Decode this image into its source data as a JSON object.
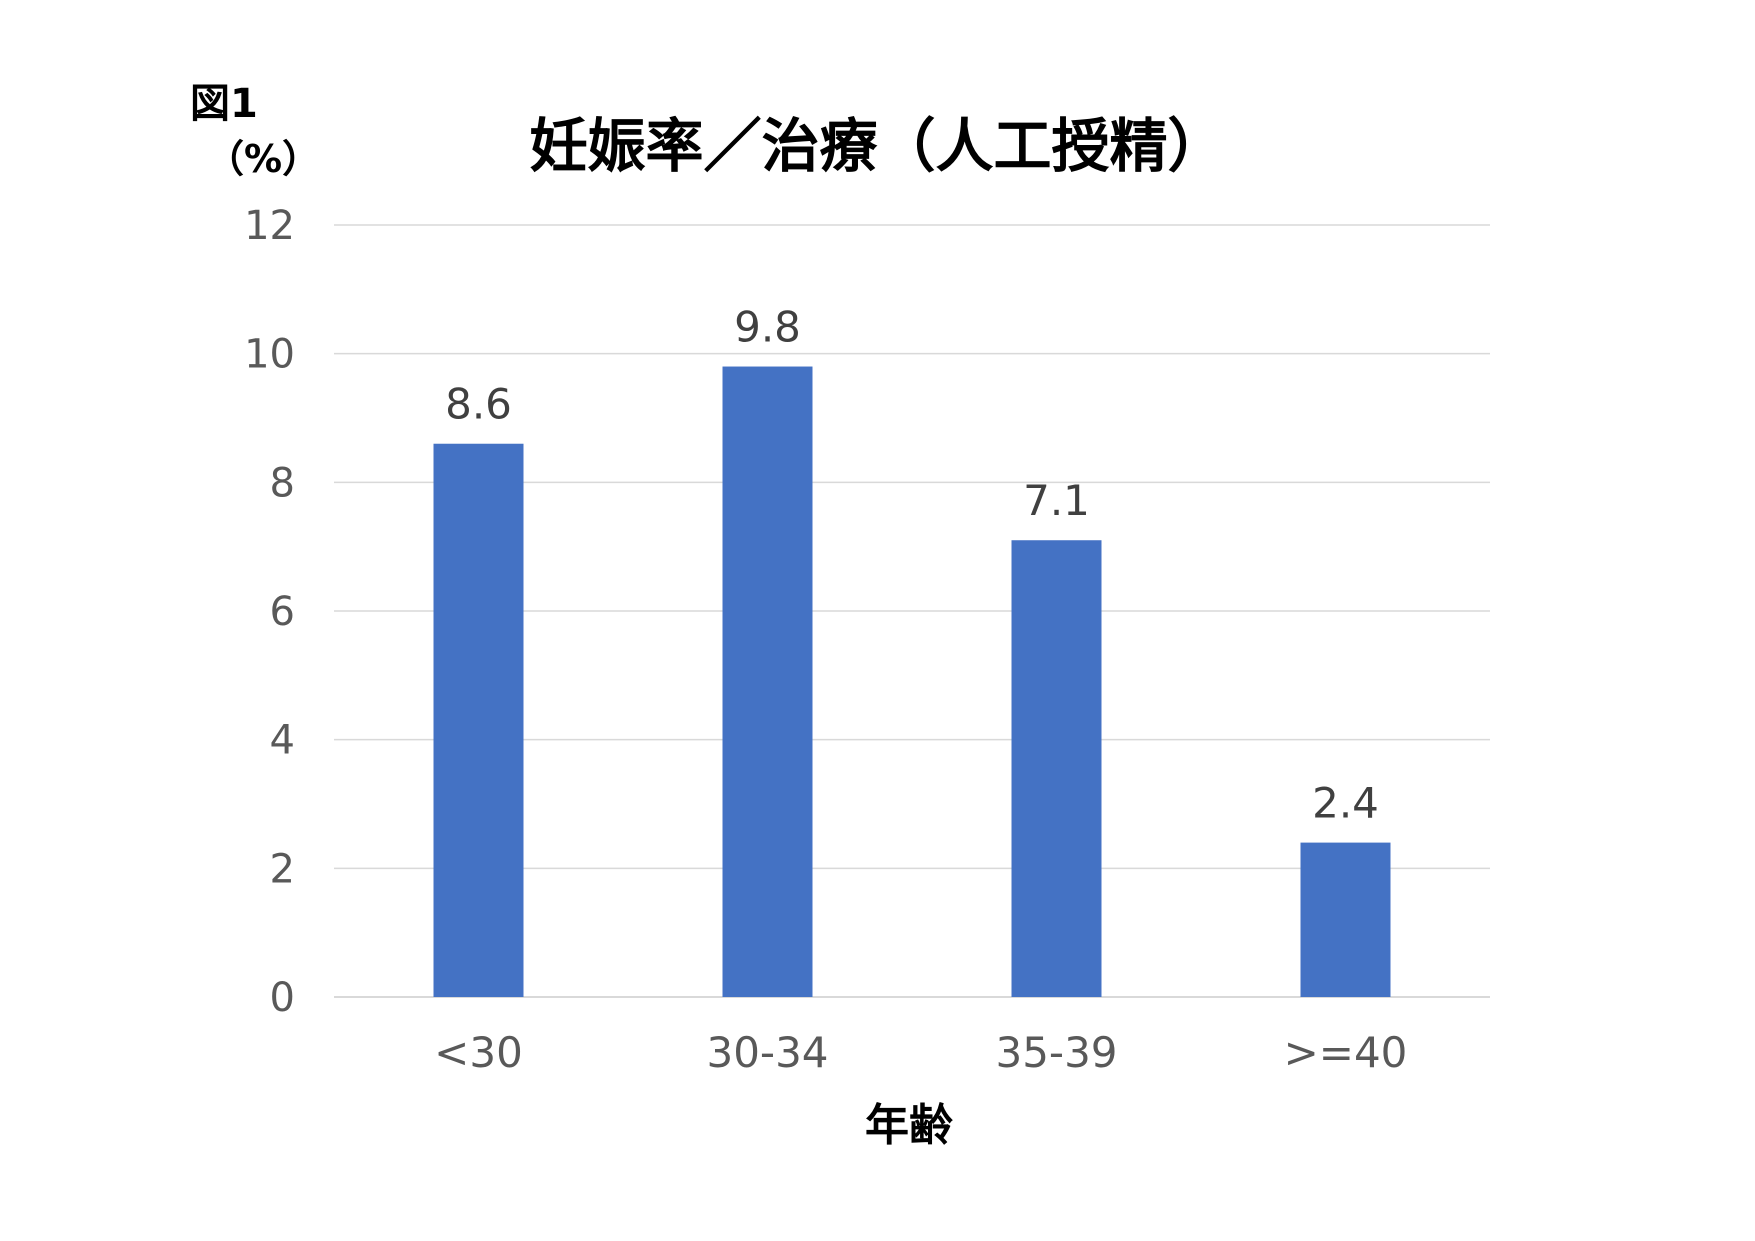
{
  "figure_label": "図1",
  "unit_label": "（%）",
  "chart_data": {
    "type": "bar",
    "title": "妊娠率／治療（人工授精）",
    "xlabel": "年齢",
    "ylabel": "",
    "categories": [
      "<30",
      "30-34",
      "35-39",
      ">=40"
    ],
    "values": [
      8.6,
      9.8,
      7.1,
      2.4
    ],
    "data_labels": [
      "8.6",
      "9.8",
      "7.1",
      "2.4"
    ],
    "ylim": [
      0,
      12
    ],
    "y_ticks": [
      "0",
      "2",
      "4",
      "6",
      "8",
      "10",
      "12"
    ],
    "grid": true,
    "legend": "none",
    "bar_color": "#4472C4"
  }
}
